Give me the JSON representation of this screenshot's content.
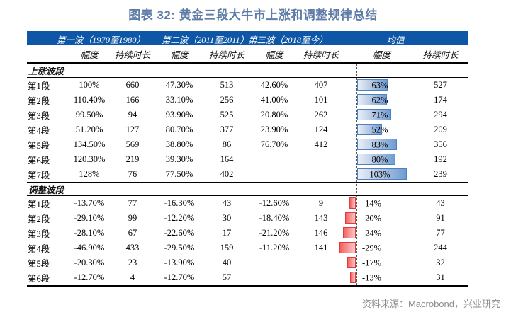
{
  "title": "图表 32: 黄金三段大牛市上涨和调整规律总结",
  "source": "资料来源：Macrobond，兴业研究",
  "colors": {
    "title_text": "#5f7ca8",
    "header_bg": "#0d57a6",
    "header_text": "#ffffff",
    "rise_bar_border": "#4f81bd",
    "rise_bar_fill": "#6f9bd1",
    "fall_bar_border": "#e03c3c",
    "fall_bar_fill": "#f26262",
    "source_text": "#8c8c8c"
  },
  "table": {
    "wave_headers": [
      "第一波（1970至1980）",
      "第二波（2011至2011）",
      "第三波（2018至今）",
      "均值"
    ],
    "sub_headers": [
      "幅度",
      "持续时长",
      "幅度",
      "持续时长",
      "幅度",
      "持续时长",
      "幅度",
      "持续时长"
    ],
    "sections": [
      {
        "key": "rising",
        "name": "上涨波段",
        "rows": [
          {
            "label": "第1段",
            "w1_amp": "100%",
            "w1_dur": "660",
            "w2_amp": "47.30%",
            "w2_dur": "513",
            "w3_amp": "42.60%",
            "w3_dur": "407",
            "avg_amp": "63%",
            "avg_amp_value": 63,
            "avg_dur": "527"
          },
          {
            "label": "第2段",
            "w1_amp": "110.40%",
            "w1_dur": "166",
            "w2_amp": "33.10%",
            "w2_dur": "256",
            "w3_amp": "41.00%",
            "w3_dur": "101",
            "avg_amp": "62%",
            "avg_amp_value": 62,
            "avg_dur": "174"
          },
          {
            "label": "第3段",
            "w1_amp": "99.50%",
            "w1_dur": "94",
            "w2_amp": "93.90%",
            "w2_dur": "525",
            "w3_amp": "20.80%",
            "w3_dur": "262",
            "avg_amp": "71%",
            "avg_amp_value": 71,
            "avg_dur": "294"
          },
          {
            "label": "第4段",
            "w1_amp": "51.20%",
            "w1_dur": "127",
            "w2_amp": "80.70%",
            "w2_dur": "377",
            "w3_amp": "23.90%",
            "w3_dur": "124",
            "avg_amp": "52%",
            "avg_amp_value": 52,
            "avg_dur": "209"
          },
          {
            "label": "第5段",
            "w1_amp": "134.50%",
            "w1_dur": "569",
            "w2_amp": "38.80%",
            "w2_dur": "86",
            "w3_amp": "76.70%",
            "w3_dur": "412",
            "avg_amp": "83%",
            "avg_amp_value": 83,
            "avg_dur": "356"
          },
          {
            "label": "第6段",
            "w1_amp": "120.30%",
            "w1_dur": "219",
            "w2_amp": "39.30%",
            "w2_dur": "164",
            "w3_amp": "",
            "w3_dur": "",
            "avg_amp": "80%",
            "avg_amp_value": 80,
            "avg_dur": "192"
          },
          {
            "label": "第7段",
            "w1_amp": "128%",
            "w1_dur": "76",
            "w2_amp": "77.50%",
            "w2_dur": "402",
            "w3_amp": "",
            "w3_dur": "",
            "avg_amp": "103%",
            "avg_amp_value": 103,
            "avg_dur": "239"
          }
        ]
      },
      {
        "key": "adjust",
        "name": "调整波段",
        "rows": [
          {
            "label": "第1段",
            "w1_amp": "-13.70%",
            "w1_dur": "77",
            "w2_amp": "-16.30%",
            "w2_dur": "43",
            "w3_amp": "-12.60%",
            "w3_dur": "9",
            "avg_amp": "-14%",
            "avg_amp_value": -14,
            "avg_dur": "43"
          },
          {
            "label": "第2段",
            "w1_amp": "-29.10%",
            "w1_dur": "99",
            "w2_amp": "-12.20%",
            "w2_dur": "30",
            "w3_amp": "-18.40%",
            "w3_dur": "143",
            "avg_amp": "-20%",
            "avg_amp_value": -20,
            "avg_dur": "91"
          },
          {
            "label": "第3段",
            "w1_amp": "-28.10%",
            "w1_dur": "67",
            "w2_amp": "-22.60%",
            "w2_dur": "17",
            "w3_amp": "-21.20%",
            "w3_dur": "146",
            "avg_amp": "-24%",
            "avg_amp_value": -24,
            "avg_dur": "77"
          },
          {
            "label": "第4段",
            "w1_amp": "-46.90%",
            "w1_dur": "433",
            "w2_amp": "-29.50%",
            "w2_dur": "159",
            "w3_amp": "-11.20%",
            "w3_dur": "141",
            "avg_amp": "-29%",
            "avg_amp_value": -29,
            "avg_dur": "244"
          },
          {
            "label": "第5段",
            "w1_amp": "-20.30%",
            "w1_dur": "23",
            "w2_amp": "-13.90%",
            "w2_dur": "40",
            "w3_amp": "",
            "w3_dur": "",
            "avg_amp": "-17%",
            "avg_amp_value": -17,
            "avg_dur": "32"
          },
          {
            "label": "第6段",
            "w1_amp": "-12.70%",
            "w1_dur": "4",
            "w2_amp": "-12.70%",
            "w2_dur": "57",
            "w3_amp": "",
            "w3_dur": "",
            "avg_amp": "-13%",
            "avg_amp_value": -13,
            "avg_dur": "31"
          }
        ]
      }
    ]
  },
  "chart_data": {
    "type": "table",
    "title": "图表 32: 黄金三段大牛市上涨和调整规律总结",
    "column_groups": [
      "第一波（1970至1980）",
      "第二波（2011至2011）",
      "第三波（2018至今）",
      "均值"
    ],
    "columns": [
      "段",
      "第一波幅度",
      "第一波持续时长",
      "第二波幅度",
      "第二波持续时长",
      "第三波幅度",
      "第三波持续时长",
      "均值幅度",
      "均值持续时长"
    ],
    "sections": [
      {
        "name": "上涨波段",
        "rows": [
          [
            "第1段",
            "100%",
            660,
            "47.30%",
            513,
            "42.60%",
            407,
            "63%",
            527
          ],
          [
            "第2段",
            "110.40%",
            166,
            "33.10%",
            256,
            "41.00%",
            101,
            "62%",
            174
          ],
          [
            "第3段",
            "99.50%",
            94,
            "93.90%",
            525,
            "20.80%",
            262,
            "71%",
            294
          ],
          [
            "第4段",
            "51.20%",
            127,
            "80.70%",
            377,
            "23.90%",
            124,
            "52%",
            209
          ],
          [
            "第5段",
            "134.50%",
            569,
            "38.80%",
            86,
            "76.70%",
            412,
            "83%",
            356
          ],
          [
            "第6段",
            "120.30%",
            219,
            "39.30%",
            164,
            null,
            null,
            "80%",
            192
          ],
          [
            "第7段",
            "128%",
            76,
            "77.50%",
            402,
            null,
            null,
            "103%",
            239
          ]
        ]
      },
      {
        "name": "调整波段",
        "rows": [
          [
            "第1段",
            "-13.70%",
            77,
            "-16.30%",
            43,
            "-12.60%",
            9,
            "-14%",
            43
          ],
          [
            "第2段",
            "-29.10%",
            99,
            "-12.20%",
            30,
            "-18.40%",
            143,
            "-20%",
            91
          ],
          [
            "第3段",
            "-28.10%",
            67,
            "-22.60%",
            17,
            "-21.20%",
            146,
            "-24%",
            77
          ],
          [
            "第4段",
            "-46.90%",
            433,
            "-29.50%",
            159,
            "-11.20%",
            141,
            "-29%",
            244
          ],
          [
            "第5段",
            "-20.30%",
            23,
            "-13.90%",
            40,
            null,
            null,
            "-17%",
            32
          ],
          [
            "第6段",
            "-12.70%",
            4,
            "-12.70%",
            57,
            null,
            null,
            "-13%",
            31
          ]
        ]
      }
    ],
    "layout_hints": {
      "avg_amp_databars": true,
      "positive_bar_color": "blue-gradient",
      "negative_bar_color": "red-gradient",
      "bar_axis": "dashed vertical line, negative bars extend left"
    }
  }
}
